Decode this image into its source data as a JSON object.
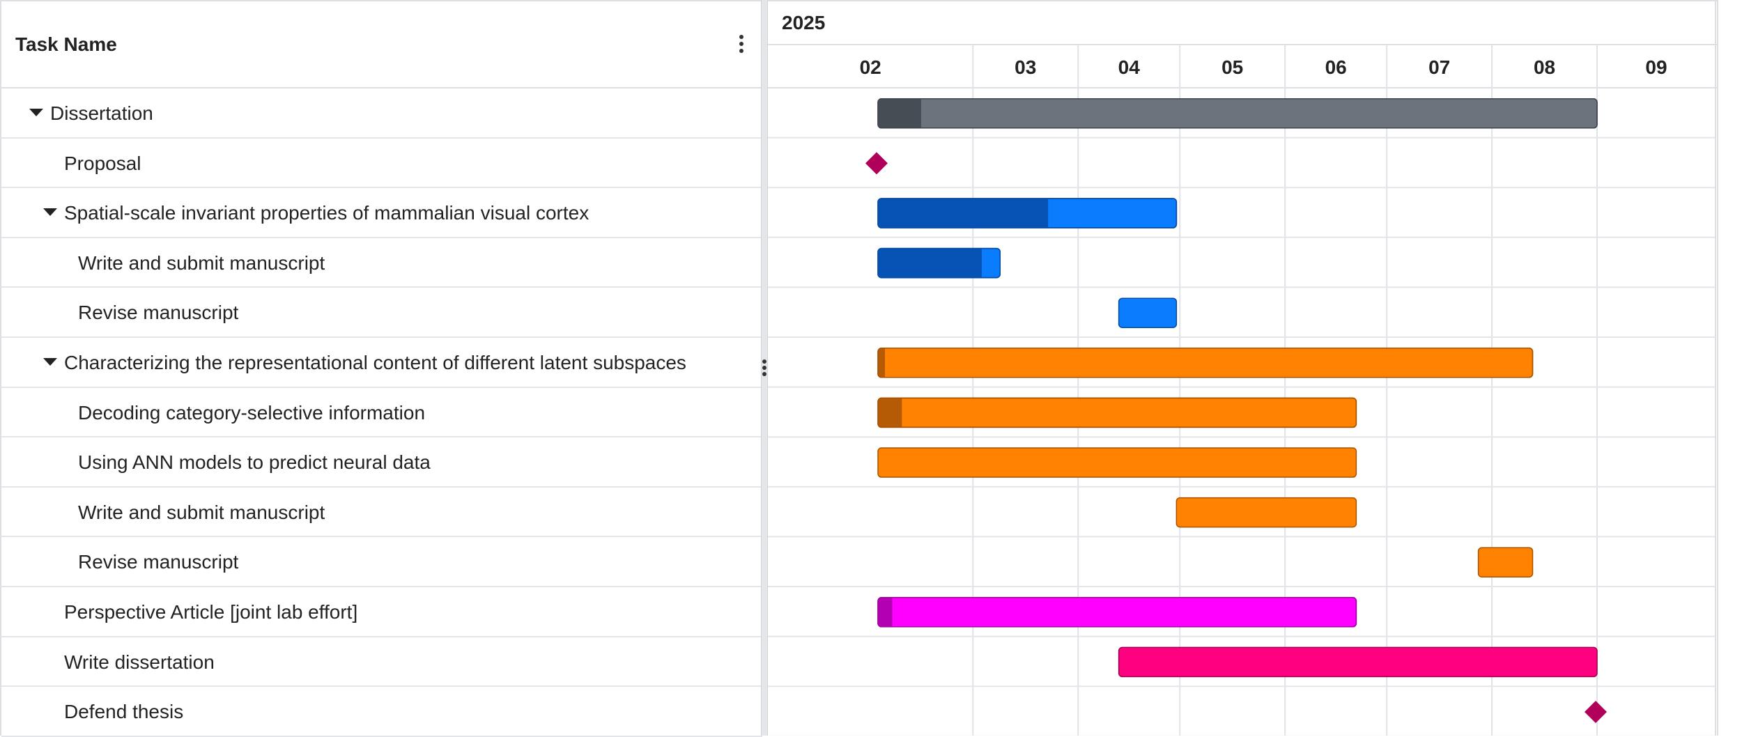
{
  "grid": {
    "header_title": "Task Name",
    "columns_menu_icon": "kebab-vertical-icon"
  },
  "timeline": {
    "year": "2025",
    "months": [
      "02",
      "03",
      "04",
      "05",
      "06",
      "07",
      "08",
      "09"
    ],
    "month_start_days": [
      0,
      28,
      59,
      89,
      120,
      150,
      181,
      212
    ],
    "total_days": 242
  },
  "colors": {
    "grid_line": "#dfe2e6",
    "header_text": "#222222",
    "milestone": "#b0005a",
    "dissertation": {
      "fill": "#6c737c",
      "progress": "#474d54",
      "stroke": "#3f454c"
    },
    "spatial": {
      "fill": "#0a7dff",
      "progress": "#0653b5",
      "stroke": "#064aa0"
    },
    "latent": {
      "fill": "#ff8200",
      "progress": "#b55a05",
      "stroke": "#a85100"
    },
    "perspective": {
      "fill": "#ff00ff",
      "progress": "#b300b3",
      "stroke": "#a000a0"
    },
    "write": {
      "fill": "#ff0080",
      "progress": "#b3005a",
      "stroke": "#a0004f"
    }
  },
  "tasks": [
    {
      "name": "Dissertation",
      "level": 0,
      "expandable": true,
      "type": "bar",
      "group": "dissertation",
      "start_day": 0,
      "end_day": 212,
      "progress": 0.06
    },
    {
      "name": "Proposal",
      "level": 1,
      "expandable": false,
      "type": "milestone",
      "day": 0
    },
    {
      "name": "Spatial-scale invariant properties of mammalian visual cortex",
      "level": 1,
      "expandable": true,
      "type": "bar",
      "group": "spatial",
      "start_day": 0,
      "end_day": 88,
      "progress": 0.57
    },
    {
      "name": "Write and submit manuscript",
      "level": 2,
      "expandable": false,
      "type": "bar",
      "group": "spatial",
      "start_day": 0,
      "end_day": 36,
      "progress": 0.85
    },
    {
      "name": "Revise manuscript",
      "level": 2,
      "expandable": false,
      "type": "bar",
      "group": "spatial",
      "start_day": 71,
      "end_day": 88,
      "progress": 0
    },
    {
      "name": "Characterizing the representational content of different latent subspaces",
      "level": 1,
      "expandable": true,
      "type": "bar",
      "group": "latent",
      "start_day": 0,
      "end_day": 193,
      "progress": 0.01
    },
    {
      "name": "Decoding category-selective information",
      "level": 2,
      "expandable": false,
      "type": "bar",
      "group": "latent",
      "start_day": 0,
      "end_day": 141,
      "progress": 0.05
    },
    {
      "name": "Using ANN models to predict neural data",
      "level": 2,
      "expandable": false,
      "type": "bar",
      "group": "latent",
      "start_day": 0,
      "end_day": 141,
      "progress": 0
    },
    {
      "name": "Write and submit manuscript",
      "level": 2,
      "expandable": false,
      "type": "bar",
      "group": "latent",
      "start_day": 88,
      "end_day": 141,
      "progress": 0
    },
    {
      "name": "Revise manuscript",
      "level": 2,
      "expandable": false,
      "type": "bar",
      "group": "latent",
      "start_day": 177,
      "end_day": 193,
      "progress": 0
    },
    {
      "name": "Perspective Article [joint lab effort]",
      "level": 1,
      "expandable": false,
      "type": "bar",
      "group": "perspective",
      "start_day": 0,
      "end_day": 141,
      "progress": 0.03
    },
    {
      "name": "Write dissertation",
      "level": 1,
      "expandable": false,
      "type": "bar",
      "group": "write",
      "start_day": 71,
      "end_day": 212,
      "progress": 0
    },
    {
      "name": "Defend thesis",
      "level": 1,
      "expandable": false,
      "type": "milestone",
      "day": 212
    }
  ]
}
